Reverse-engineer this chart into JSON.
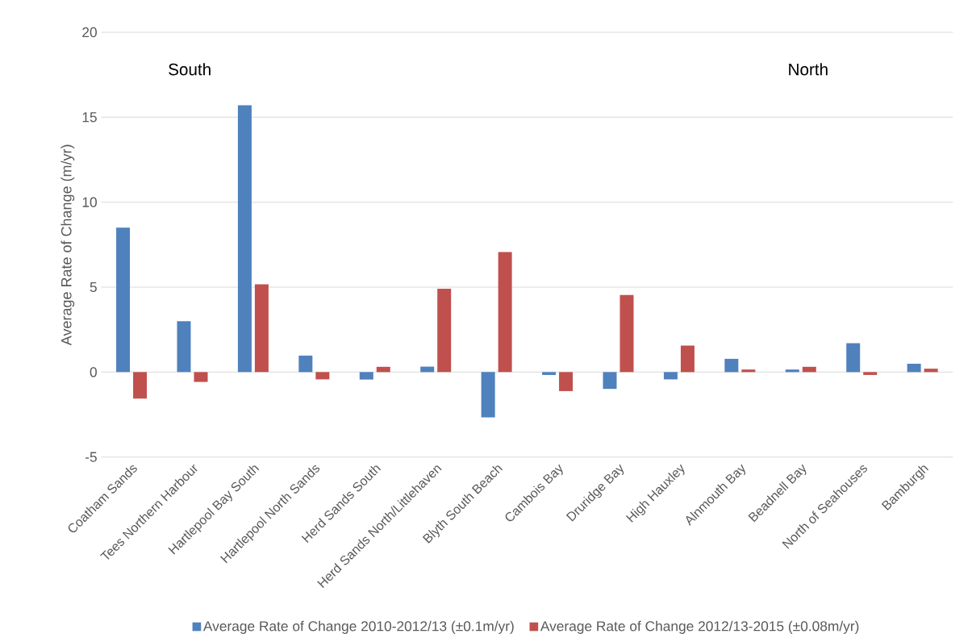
{
  "chart_data": {
    "type": "bar",
    "ylabel": "Average Rate of Change (m/yr)",
    "categories": [
      "Coatham Sands",
      "Tees Northern Harbour",
      "Hartlepool Bay South",
      "Hartlepool North Sands",
      "Herd Sands South",
      "Herd Sands North/Littlehaven",
      "Blyth South Beach",
      "Cambois Bay",
      "Druridge Bay",
      "High Hauxley",
      "Alnmouth Bay",
      "Beadnell Bay",
      "North of Seahouses",
      "Bamburgh"
    ],
    "series": [
      {
        "name": "Average Rate of Change 2010-2012/13 (±0.1m/yr)",
        "color": "#4f81bd",
        "values": [
          8.5,
          3.0,
          15.7,
          0.97,
          -0.44,
          0.32,
          -2.67,
          -0.17,
          -0.99,
          -0.43,
          0.78,
          0.15,
          1.7,
          0.49
        ]
      },
      {
        "name": "Average Rate of Change 2012/13-2015 (±0.08m/yr)",
        "color": "#c0504d",
        "values": [
          -1.56,
          -0.58,
          5.17,
          -0.43,
          0.31,
          4.9,
          7.06,
          -1.12,
          4.54,
          1.56,
          0.15,
          0.31,
          -0.17,
          0.2
        ]
      }
    ],
    "ylim": [
      -5,
      20
    ],
    "yticks": [
      -5,
      0,
      5,
      10,
      15,
      20
    ],
    "grid": "y",
    "legend": "bottom",
    "annotations": [
      "South",
      "North"
    ]
  }
}
